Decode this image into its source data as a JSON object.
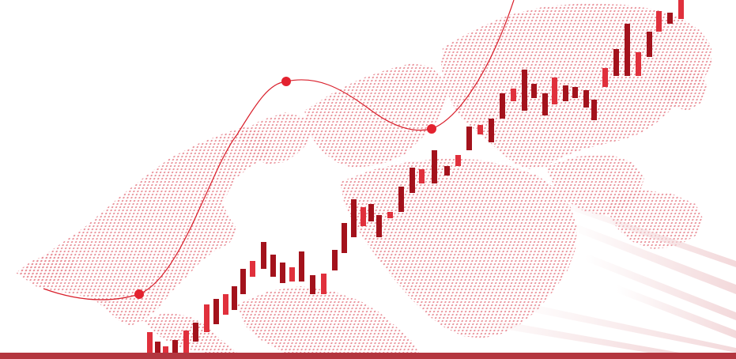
{
  "image": {
    "description_free": true,
    "colors": {
      "background": "#ffffff",
      "dots": "#e88b94",
      "bars_light": "#e0303c",
      "bars_dark": "#a3121c",
      "curve": "#d91f2b",
      "markers": "#e3222f",
      "band": "#b3363f",
      "streaks": "#f1d6d8"
    }
  }
}
